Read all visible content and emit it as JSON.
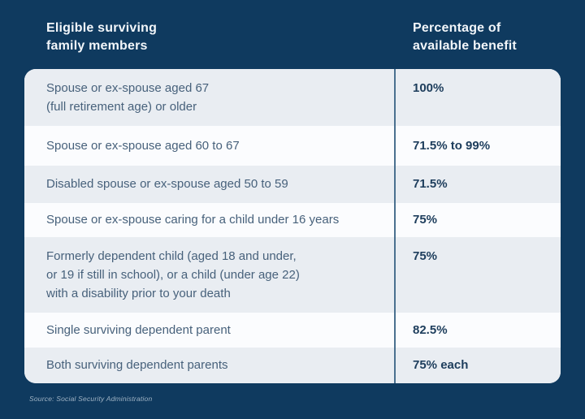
{
  "colors": {
    "background": "#0F3A5F",
    "row_alt_bg": "#E9EDF2",
    "row_plain_bg": "#FBFCFE",
    "member_text": "#47617B",
    "benefit_text": "#1D3D5C",
    "divider": "#4A708F",
    "header_text": "#F2F6FA",
    "source_text": "#9FB3C4"
  },
  "header": {
    "members_label": "Eligible surviving\nfamily members",
    "benefit_label": "Percentage of\navailable benefit"
  },
  "table": {
    "rows": [
      {
        "member": "Spouse or ex-spouse aged 67\n(full retirement age) or older",
        "benefit": "100%"
      },
      {
        "member": "Spouse or ex-spouse aged 60 to 67",
        "benefit": "71.5% to 99%"
      },
      {
        "member": "Disabled spouse or ex-spouse aged 50 to 59",
        "benefit": "71.5%"
      },
      {
        "member": "Spouse or ex-spouse caring for a child under 16 years",
        "benefit": "75%"
      },
      {
        "member": "Formerly dependent child (aged 18 and under,\nor 19 if still in school), or a child (under age 22)\nwith a disability prior to your death",
        "benefit": "75%"
      },
      {
        "member": "Single surviving dependent parent",
        "benefit": "82.5%"
      },
      {
        "member": "Both surviving dependent parents",
        "benefit": "75% each"
      }
    ]
  },
  "source": "Source: Social Security Administration",
  "chart_data": {
    "type": "table",
    "title": "",
    "columns": [
      "Eligible surviving family members",
      "Percentage of available benefit"
    ],
    "rows": [
      [
        "Spouse or ex-spouse aged 67 (full retirement age) or older",
        "100%"
      ],
      [
        "Spouse or ex-spouse aged 60 to 67",
        "71.5% to 99%"
      ],
      [
        "Disabled spouse or ex-spouse aged 50 to 59",
        "71.5%"
      ],
      [
        "Spouse or ex-spouse caring for a child under 16 years",
        "75%"
      ],
      [
        "Formerly dependent child (aged 18 and under, or 19 if still in school), or a child (under age 22) with a disability prior to your death",
        "75%"
      ],
      [
        "Single surviving dependent parent",
        "82.5%"
      ],
      [
        "Both surviving dependent parents",
        "75% each"
      ]
    ],
    "source": "Source: Social Security Administration",
    "layout": {
      "row_striping": "odd rows shaded",
      "value_column_alignment": "left",
      "column_divider": true
    }
  }
}
